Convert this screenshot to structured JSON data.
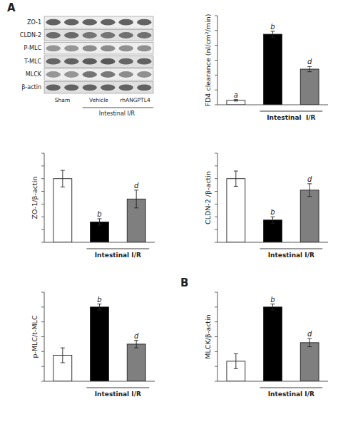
{
  "chart_data": [
    {
      "type": "heatmap",
      "title": "A",
      "categories": [
        "Sham",
        "Vehicle",
        "rhANGPTL4"
      ],
      "y_categories": [
        "ZO-1",
        "CLDN-2",
        "P-MLC",
        "T-MLC",
        "MLCK",
        "β-actin"
      ],
      "values": [
        [
          [
            0.82,
            0.82
          ],
          [
            0.82,
            0.82
          ],
          [
            0.82,
            0.82
          ]
        ],
        [
          [
            0.78,
            0.78
          ],
          [
            0.72,
            0.72
          ],
          [
            0.75,
            0.75
          ]
        ],
        [
          [
            0.55,
            0.55
          ],
          [
            0.6,
            0.6
          ],
          [
            0.58,
            0.58
          ]
        ],
        [
          [
            0.8,
            0.82
          ],
          [
            0.85,
            0.87
          ],
          [
            0.8,
            0.82
          ]
        ],
        [
          [
            0.55,
            0.55
          ],
          [
            0.72,
            0.7
          ],
          [
            0.6,
            0.58
          ]
        ],
        [
          [
            0.82,
            0.82
          ],
          [
            0.82,
            0.82
          ],
          [
            0.82,
            0.82
          ]
        ]
      ],
      "xlabel": "Intestinal I/R"
    },
    {
      "type": "bar",
      "categories": [
        null,
        null,
        null
      ],
      "values": [
        0.06,
        0.95,
        0.48
      ],
      "errors": [
        0.01,
        0.04,
        0.035
      ],
      "colors": [
        "white",
        "black",
        "#7f7f7f"
      ],
      "sig_labels": [
        "a",
        "b",
        "d"
      ],
      "ylabel": "FD4 clearance (nl/cm²/min)",
      "xlabel": "Intestinal  I/R",
      "ylim": [
        0,
        1.2
      ],
      "yticks": [
        0,
        0.2,
        0.4,
        0.6,
        0.8,
        1.0,
        1.2
      ],
      "tick_labels": false
    },
    {
      "type": "bar",
      "categories": [
        null,
        null,
        null
      ],
      "values": [
        1.0,
        0.32,
        0.68
      ],
      "errors": [
        0.13,
        0.05,
        0.14
      ],
      "colors": [
        "white",
        "black",
        "#7f7f7f"
      ],
      "sig_labels": [
        null,
        "b",
        "d"
      ],
      "ylabel": "ZO-1/β-actin",
      "xlabel": "Intestinal I/R",
      "ylim": [
        0,
        1.4
      ],
      "yticks": [
        0,
        0.2,
        0.4,
        0.6,
        0.8,
        1.0,
        1.2,
        1.4
      ],
      "tick_labels": false
    },
    {
      "type": "bar",
      "categories": [
        null,
        null,
        null
      ],
      "values": [
        1.0,
        0.35,
        0.82
      ],
      "errors": [
        0.12,
        0.05,
        0.1
      ],
      "colors": [
        "white",
        "black",
        "#7f7f7f"
      ],
      "sig_labels": [
        null,
        "b",
        "d"
      ],
      "ylabel": "CLDN-2 /β-actin",
      "xlabel": "Intestinal I/R",
      "ylim": [
        0,
        1.4
      ],
      "yticks": [
        0,
        0.2,
        0.4,
        0.6,
        0.8,
        1.0,
        1.2,
        1.4
      ],
      "tick_labels": false
    },
    {
      "type": "bar",
      "categories": [
        null,
        null,
        null
      ],
      "values": [
        0.35,
        1.0,
        0.5
      ],
      "errors": [
        0.1,
        0.04,
        0.05
      ],
      "colors": [
        "white",
        "black",
        "#7f7f7f"
      ],
      "sig_labels": [
        null,
        "b",
        "d"
      ],
      "ylabel": "p-MLC/t-MLC",
      "xlabel": "Intestinal I/R",
      "ylim": [
        0,
        1.2
      ],
      "yticks": [
        0,
        0.2,
        0.4,
        0.6,
        0.8,
        1.0,
        1.2
      ],
      "tick_labels": false
    },
    {
      "type": "bar",
      "categories": [
        null,
        null,
        null
      ],
      "values": [
        0.27,
        1.0,
        0.52
      ],
      "errors": [
        0.1,
        0.04,
        0.055
      ],
      "colors": [
        "white",
        "black",
        "#7f7f7f"
      ],
      "sig_labels": [
        null,
        "b",
        "d"
      ],
      "ylabel": "MLCK/β-actin",
      "xlabel": "Intestinal I/R",
      "annotations": [
        "B"
      ],
      "ylim": [
        0,
        1.2
      ],
      "yticks": [
        0,
        0.2,
        0.4,
        0.6,
        0.8,
        1.0,
        1.2
      ],
      "tick_labels": false
    }
  ]
}
